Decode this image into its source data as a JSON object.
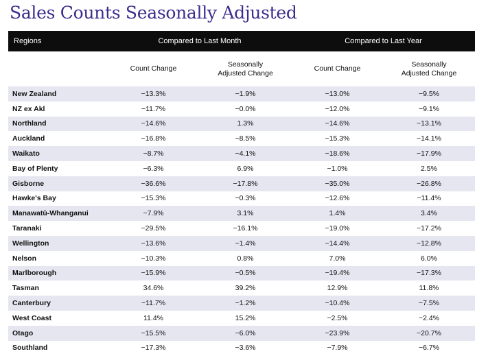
{
  "title": "Sales Counts Seasonally Adjusted",
  "header": {
    "regions": "Regions",
    "last_month": "Compared to Last Month",
    "last_year": "Compared to Last Year"
  },
  "subheader": {
    "count_change": "Count Change",
    "seasonally_adjusted_line1": "Seasonally",
    "seasonally_adjusted_line2": "Adjusted Change"
  },
  "colors": {
    "title": "#3d2c8e",
    "header_bg": "#0d0d0d",
    "stripe": "#e6e6f1"
  },
  "rows": [
    {
      "region": "New Zealand",
      "m_count": "−13.3%",
      "m_sa": "−1.9%",
      "y_count": "−13.0%",
      "y_sa": "−9.5%"
    },
    {
      "region": "NZ ex Akl",
      "m_count": "−11.7%",
      "m_sa": "−0.0%",
      "y_count": "−12.0%",
      "y_sa": "−9.1%"
    },
    {
      "region": "Northland",
      "m_count": "−14.6%",
      "m_sa": "1.3%",
      "y_count": "−14.6%",
      "y_sa": "−13.1%"
    },
    {
      "region": "Auckland",
      "m_count": "−16.8%",
      "m_sa": "−8.5%",
      "y_count": "−15.3%",
      "y_sa": "−14.1%"
    },
    {
      "region": "Waikato",
      "m_count": "−8.7%",
      "m_sa": "−4.1%",
      "y_count": "−18.6%",
      "y_sa": "−17.9%"
    },
    {
      "region": "Bay of Plenty",
      "m_count": "−6.3%",
      "m_sa": "6.9%",
      "y_count": "−1.0%",
      "y_sa": "2.5%"
    },
    {
      "region": "Gisborne",
      "m_count": "−36.6%",
      "m_sa": "−17.8%",
      "y_count": "−35.0%",
      "y_sa": "−26.8%"
    },
    {
      "region": "Hawke's Bay",
      "m_count": "−15.3%",
      "m_sa": "−0.3%",
      "y_count": "−12.6%",
      "y_sa": "−11.4%"
    },
    {
      "region": "Manawatū-Whanganui",
      "m_count": "−7.9%",
      "m_sa": "3.1%",
      "y_count": "1.4%",
      "y_sa": "3.4%"
    },
    {
      "region": "Taranaki",
      "m_count": "−29.5%",
      "m_sa": "−16.1%",
      "y_count": "−19.0%",
      "y_sa": "−17.2%"
    },
    {
      "region": "Wellington",
      "m_count": "−13.6%",
      "m_sa": "−1.4%",
      "y_count": "−14.4%",
      "y_sa": "−12.8%"
    },
    {
      "region": "Nelson",
      "m_count": "−10.3%",
      "m_sa": "0.8%",
      "y_count": "7.0%",
      "y_sa": "6.0%"
    },
    {
      "region": "Marlborough",
      "m_count": "−15.9%",
      "m_sa": "−0.5%",
      "y_count": "−19.4%",
      "y_sa": "−17.3%"
    },
    {
      "region": "Tasman",
      "m_count": "34.6%",
      "m_sa": "39.2%",
      "y_count": "12.9%",
      "y_sa": "11.8%"
    },
    {
      "region": "Canterbury",
      "m_count": "−11.7%",
      "m_sa": "−1.2%",
      "y_count": "−10.4%",
      "y_sa": "−7.5%"
    },
    {
      "region": "West Coast",
      "m_count": "11.4%",
      "m_sa": "15.2%",
      "y_count": "−2.5%",
      "y_sa": "−2.4%"
    },
    {
      "region": "Otago",
      "m_count": "−15.5%",
      "m_sa": "−6.0%",
      "y_count": "−23.9%",
      "y_sa": "−20.7%"
    },
    {
      "region": "Southland",
      "m_count": "−17.3%",
      "m_sa": "−3.6%",
      "y_count": "−7.9%",
      "y_sa": "−6.7%"
    }
  ]
}
